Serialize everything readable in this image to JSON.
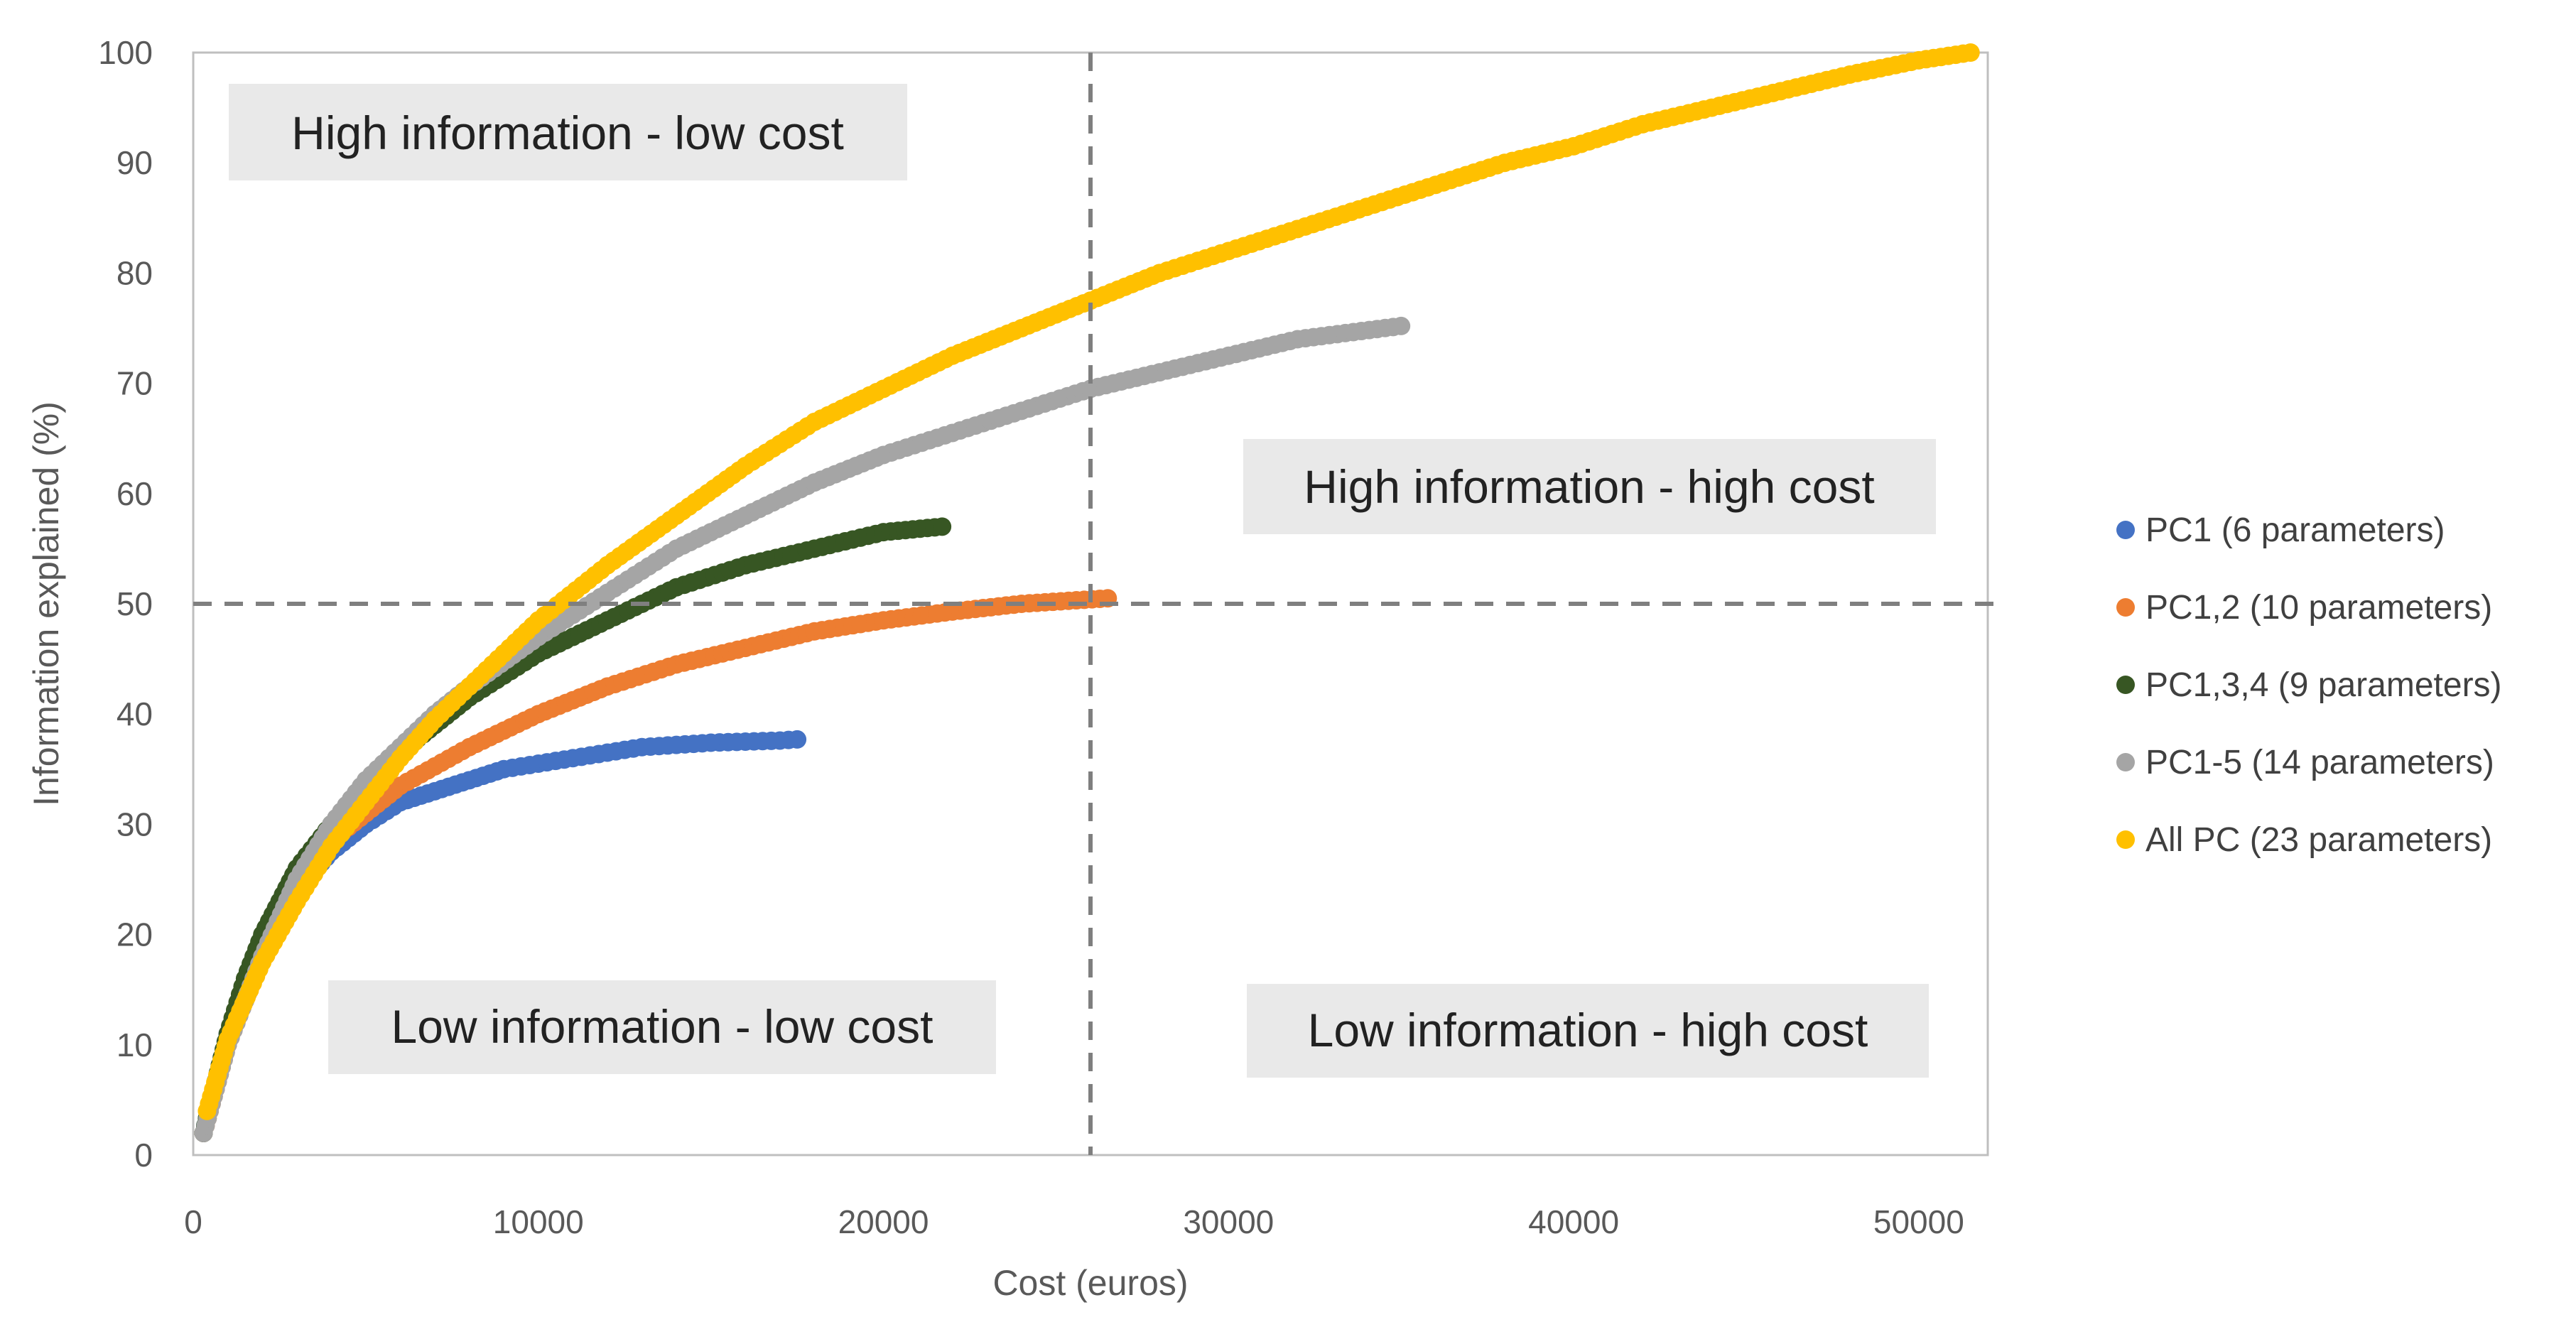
{
  "chart_data": {
    "type": "scatter",
    "xlabel": "Cost (euros)",
    "ylabel": "Information explained (%)",
    "xlim": [
      0,
      52000
    ],
    "ylim": [
      0,
      100
    ],
    "xticks": [
      0,
      10000,
      20000,
      30000,
      40000,
      50000
    ],
    "yticks": [
      0,
      10,
      20,
      30,
      40,
      50,
      60,
      70,
      80,
      90,
      100
    ],
    "threshold_x": 26000,
    "threshold_y": 50,
    "quadrant_labels": {
      "top_left": "High information - low cost",
      "top_right": "High information - high cost",
      "bottom_left": "Low information - low cost",
      "bottom_right": "Low information - high cost"
    },
    "series": [
      {
        "name": "PC1 (6 parameters)",
        "color": "#4472C4",
        "points": [
          [
            300,
            2
          ],
          [
            600,
            6
          ],
          [
            1000,
            11
          ],
          [
            1500,
            15
          ],
          [
            2000,
            19
          ],
          [
            3000,
            24
          ],
          [
            4000,
            27.5
          ],
          [
            5000,
            30
          ],
          [
            6000,
            32
          ],
          [
            7000,
            33
          ],
          [
            8000,
            34
          ],
          [
            9000,
            35
          ],
          [
            10000,
            35.5
          ],
          [
            11000,
            36
          ],
          [
            12000,
            36.5
          ],
          [
            13000,
            37
          ],
          [
            14000,
            37.2
          ],
          [
            15000,
            37.4
          ],
          [
            16000,
            37.5
          ],
          [
            17000,
            37.6
          ],
          [
            17500,
            37.7
          ]
        ]
      },
      {
        "name": "PC1,2 (10 parameters)",
        "color": "#ED7D31",
        "points": [
          [
            300,
            2
          ],
          [
            1000,
            10
          ],
          [
            2000,
            18
          ],
          [
            3000,
            24
          ],
          [
            4000,
            28.5
          ],
          [
            5000,
            31
          ],
          [
            6000,
            33.5
          ],
          [
            8000,
            37
          ],
          [
            10000,
            40
          ],
          [
            12000,
            42.5
          ],
          [
            14000,
            44.5
          ],
          [
            16000,
            46
          ],
          [
            18000,
            47.5
          ],
          [
            20000,
            48.5
          ],
          [
            22000,
            49.3
          ],
          [
            24000,
            50
          ],
          [
            26500,
            50.5
          ]
        ]
      },
      {
        "name": "PC1,3,4 (9 parameters)",
        "color": "#375623",
        "points": [
          [
            300,
            2
          ],
          [
            600,
            6
          ],
          [
            1000,
            11
          ],
          [
            1500,
            16
          ],
          [
            2000,
            20
          ],
          [
            3000,
            26
          ],
          [
            4000,
            30
          ],
          [
            5000,
            33.5
          ],
          [
            6000,
            36.5
          ],
          [
            7000,
            39
          ],
          [
            8000,
            41.5
          ],
          [
            10000,
            45.5
          ],
          [
            12000,
            48.5
          ],
          [
            14000,
            51.5
          ],
          [
            16000,
            53.5
          ],
          [
            18000,
            55
          ],
          [
            20000,
            56.5
          ],
          [
            21700,
            57
          ]
        ]
      },
      {
        "name": "PC1-5 (14 parameters)",
        "color": "#A5A5A5",
        "points": [
          [
            300,
            2
          ],
          [
            1000,
            10
          ],
          [
            2000,
            18
          ],
          [
            3000,
            25
          ],
          [
            4000,
            30
          ],
          [
            5000,
            34
          ],
          [
            6000,
            37
          ],
          [
            7000,
            40
          ],
          [
            8000,
            42.5
          ],
          [
            10000,
            47
          ],
          [
            12000,
            51
          ],
          [
            14000,
            55
          ],
          [
            16000,
            58
          ],
          [
            18000,
            61
          ],
          [
            20000,
            63.5
          ],
          [
            22000,
            65.5
          ],
          [
            24000,
            67.5
          ],
          [
            26000,
            69.5
          ],
          [
            28000,
            71
          ],
          [
            30000,
            72.5
          ],
          [
            32000,
            74
          ],
          [
            35000,
            75.2
          ]
        ]
      },
      {
        "name": "All PC (23 parameters)",
        "color": "#FFC000",
        "points": [
          [
            400,
            4
          ],
          [
            1000,
            10.5
          ],
          [
            2000,
            17.5
          ],
          [
            3000,
            23
          ],
          [
            4000,
            28
          ],
          [
            5000,
            32
          ],
          [
            6000,
            36
          ],
          [
            7000,
            39.5
          ],
          [
            8000,
            42.5
          ],
          [
            10000,
            48.5
          ],
          [
            12000,
            53.5
          ],
          [
            14000,
            58
          ],
          [
            16000,
            62.5
          ],
          [
            18000,
            66.5
          ],
          [
            20000,
            69.5
          ],
          [
            22000,
            72.5
          ],
          [
            24000,
            75
          ],
          [
            26000,
            77.5
          ],
          [
            28000,
            80
          ],
          [
            30000,
            82
          ],
          [
            32000,
            84
          ],
          [
            34000,
            86
          ],
          [
            36000,
            88
          ],
          [
            38000,
            90
          ],
          [
            40000,
            91.5
          ],
          [
            42000,
            93.5
          ],
          [
            44000,
            95
          ],
          [
            46000,
            96.5
          ],
          [
            48000,
            98
          ],
          [
            50000,
            99.3
          ],
          [
            51500,
            100
          ]
        ]
      }
    ]
  }
}
